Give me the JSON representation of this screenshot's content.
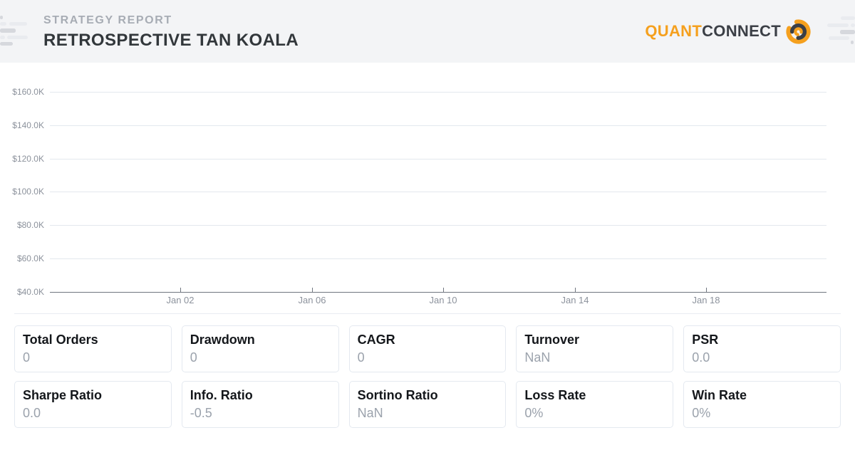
{
  "header": {
    "report_label": "STRATEGY REPORT",
    "strategy_name": "RETROSPECTIVE TAN KOALA",
    "logo": {
      "part1": "QUANT",
      "part2": "CONNECT",
      "icon": "quantconnect-swirl-icon"
    }
  },
  "colors": {
    "brand_orange": "#F5A01E",
    "logo_dark": "#3B3F46",
    "header_background": "#F3F4F6",
    "grid_line": "#E3E8EE",
    "axis_line": "#707680",
    "axis_label_text": "#8C929C",
    "card_border": "#E4E9F0",
    "card_label_text": "#14171B",
    "card_value_text": "#9BA2AC"
  },
  "chart_data": {
    "type": "line",
    "title": "",
    "xlabel": "",
    "ylabel": "",
    "x_tick_labels": [
      "Jan 02",
      "Jan 06",
      "Jan 10",
      "Jan 14",
      "Jan 18"
    ],
    "y_tick_labels": [
      "$160.0K",
      "$140.0K",
      "$120.0K",
      "$100.0K",
      "$80.0K",
      "$60.0K",
      "$40.0K"
    ],
    "ylim": [
      40000,
      160000
    ],
    "grid": true,
    "legend_position": "none",
    "series": []
  },
  "stats": {
    "cards": [
      {
        "label": "Total Orders",
        "value": "0"
      },
      {
        "label": "Drawdown",
        "value": "0"
      },
      {
        "label": "CAGR",
        "value": "0"
      },
      {
        "label": "Turnover",
        "value": "NaN"
      },
      {
        "label": "PSR",
        "value": "0.0"
      },
      {
        "label": "Sharpe Ratio",
        "value": "0.0"
      },
      {
        "label": "Info. Ratio",
        "value": "-0.5"
      },
      {
        "label": "Sortino Ratio",
        "value": "NaN"
      },
      {
        "label": "Loss Rate",
        "value": "0%"
      },
      {
        "label": "Win Rate",
        "value": "0%"
      }
    ]
  }
}
